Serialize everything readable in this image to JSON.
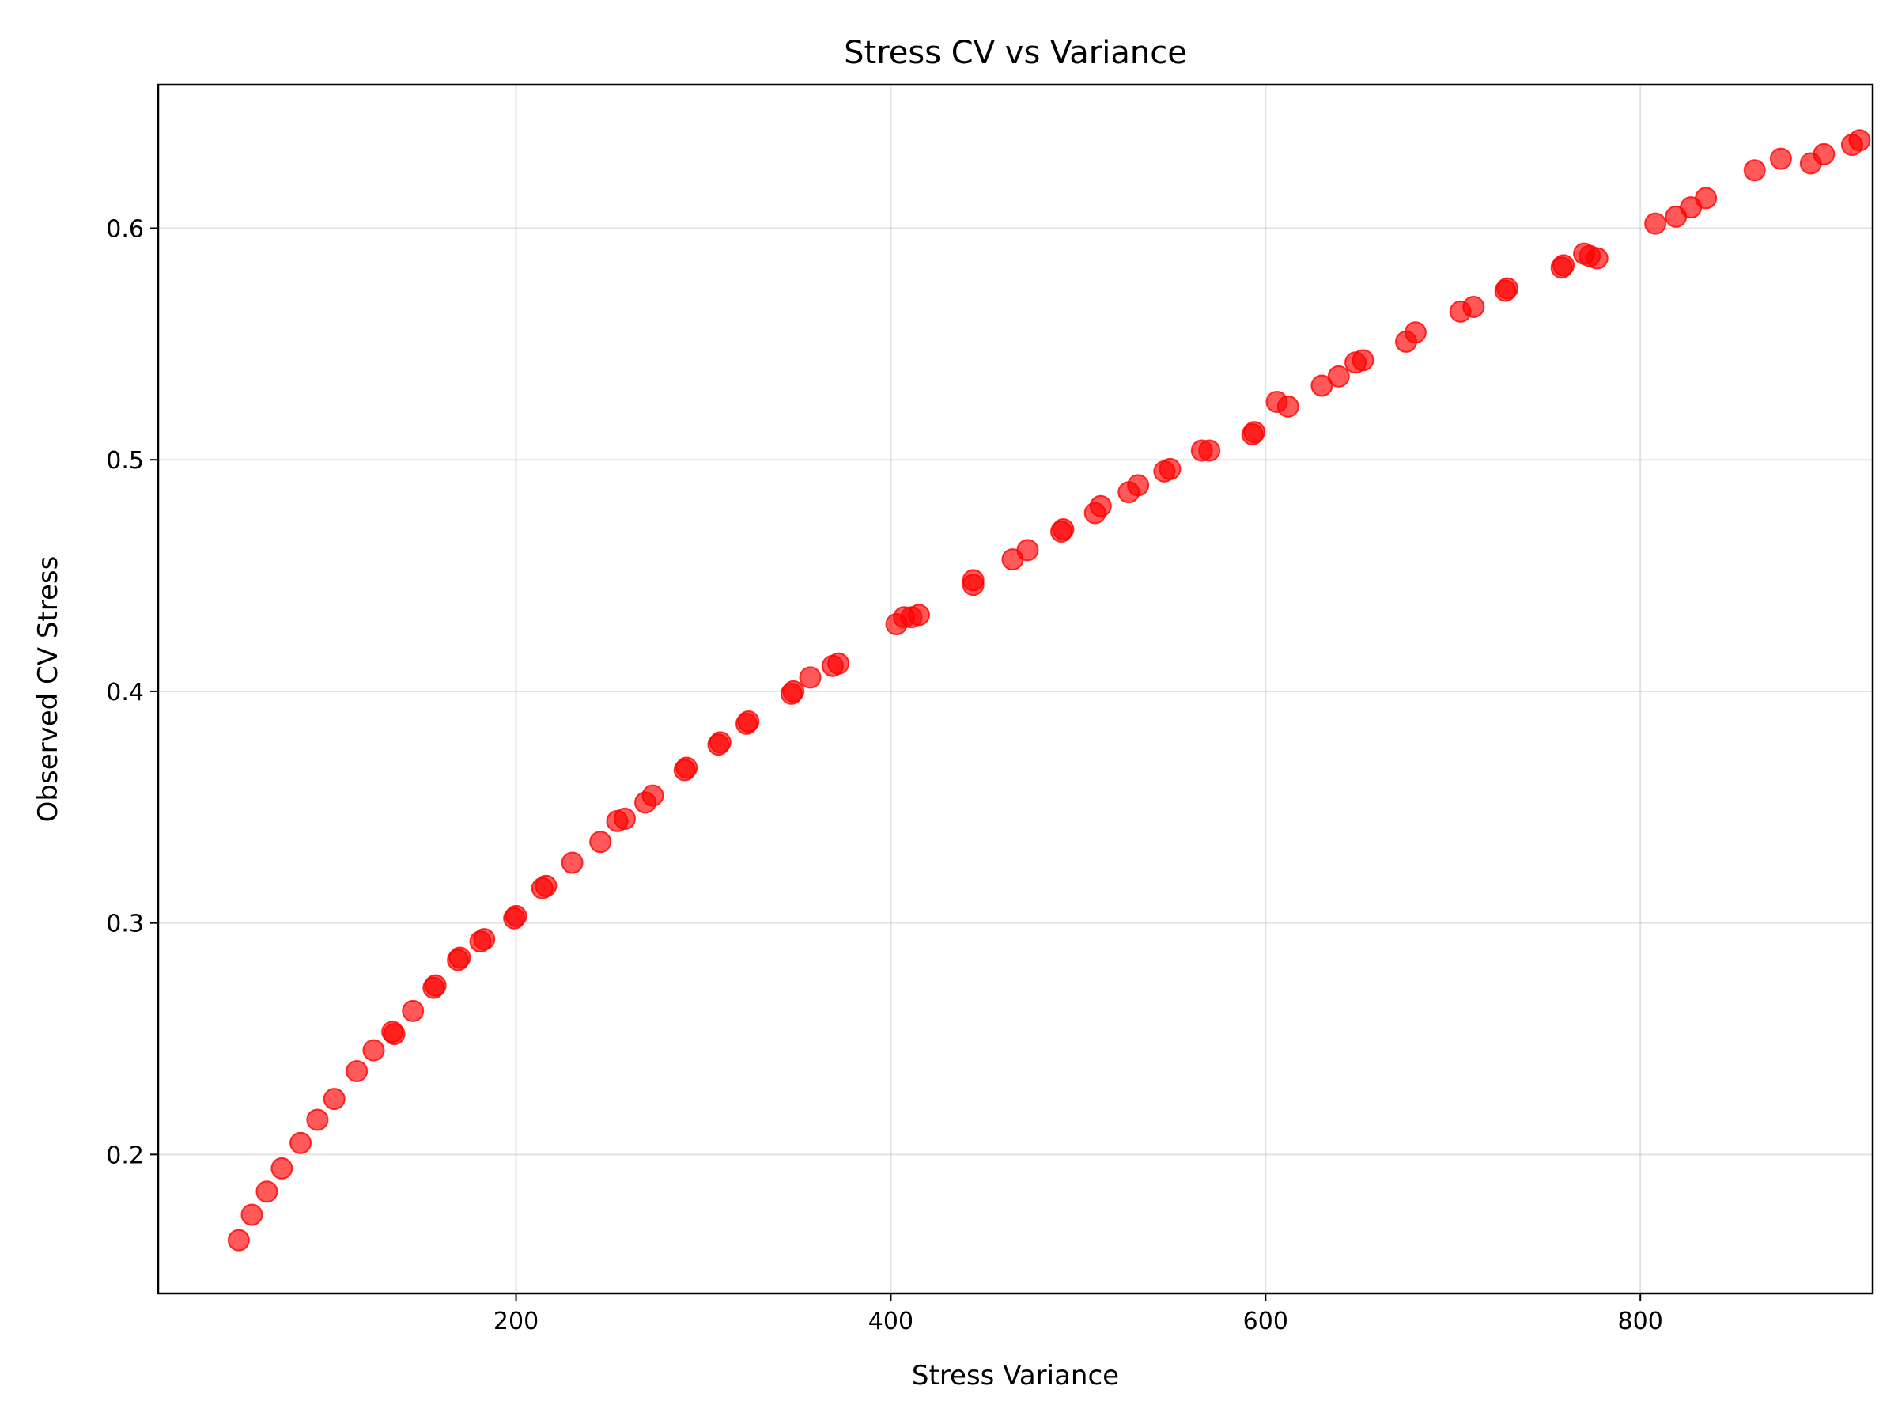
{
  "chart_data": {
    "type": "scatter",
    "title": "Stress CV vs Variance",
    "xlabel": "Stress Variance",
    "ylabel": "Observed CV Stress",
    "xlim": [
      9,
      924
    ],
    "ylim": [
      0.14,
      0.662
    ],
    "xticks": [
      200,
      400,
      600,
      800
    ],
    "yticks": [
      0.2,
      0.3,
      0.4,
      0.5,
      0.6
    ],
    "xtick_labels": [
      "200",
      "400",
      "600",
      "800"
    ],
    "ytick_labels": [
      "0.2",
      "0.3",
      "0.4",
      "0.5",
      "0.6"
    ],
    "grid": true,
    "marker_color": "#ff0000",
    "marker_alpha": 0.65,
    "series": [
      {
        "points": [
          [
            52,
            0.163
          ],
          [
            59,
            0.174
          ],
          [
            67,
            0.184
          ],
          [
            75,
            0.194
          ],
          [
            85,
            0.205
          ],
          [
            94,
            0.215
          ],
          [
            103,
            0.224
          ],
          [
            115,
            0.236
          ],
          [
            124,
            0.245
          ],
          [
            134,
            0.253
          ],
          [
            135,
            0.252
          ],
          [
            145,
            0.262
          ],
          [
            156,
            0.272
          ],
          [
            157,
            0.273
          ],
          [
            169,
            0.284
          ],
          [
            170,
            0.285
          ],
          [
            181,
            0.292
          ],
          [
            183,
            0.293
          ],
          [
            199,
            0.302
          ],
          [
            200,
            0.303
          ],
          [
            214,
            0.315
          ],
          [
            216,
            0.316
          ],
          [
            230,
            0.326
          ],
          [
            245,
            0.335
          ],
          [
            254,
            0.344
          ],
          [
            258,
            0.345
          ],
          [
            269,
            0.352
          ],
          [
            273,
            0.355
          ],
          [
            290,
            0.366
          ],
          [
            291,
            0.367
          ],
          [
            308,
            0.377
          ],
          [
            309,
            0.378
          ],
          [
            323,
            0.386
          ],
          [
            324,
            0.387
          ],
          [
            347,
            0.399
          ],
          [
            348,
            0.4
          ],
          [
            357,
            0.406
          ],
          [
            369,
            0.411
          ],
          [
            372,
            0.412
          ],
          [
            403,
            0.429
          ],
          [
            407,
            0.432
          ],
          [
            411,
            0.432
          ],
          [
            415,
            0.433
          ],
          [
            444,
            0.446
          ],
          [
            444,
            0.448
          ],
          [
            465,
            0.457
          ],
          [
            473,
            0.461
          ],
          [
            491,
            0.469
          ],
          [
            492,
            0.47
          ],
          [
            509,
            0.477
          ],
          [
            512,
            0.48
          ],
          [
            527,
            0.486
          ],
          [
            532,
            0.489
          ],
          [
            546,
            0.495
          ],
          [
            549,
            0.496
          ],
          [
            566,
            0.504
          ],
          [
            570,
            0.504
          ],
          [
            593,
            0.511
          ],
          [
            594,
            0.512
          ],
          [
            606,
            0.525
          ],
          [
            612,
            0.523
          ],
          [
            630,
            0.532
          ],
          [
            639,
            0.536
          ],
          [
            648,
            0.542
          ],
          [
            652,
            0.543
          ],
          [
            675,
            0.551
          ],
          [
            680,
            0.555
          ],
          [
            704,
            0.564
          ],
          [
            711,
            0.566
          ],
          [
            728,
            0.573
          ],
          [
            729,
            0.574
          ],
          [
            758,
            0.583
          ],
          [
            759,
            0.584
          ],
          [
            770,
            0.589
          ],
          [
            773,
            0.588
          ],
          [
            777,
            0.587
          ],
          [
            808,
            0.602
          ],
          [
            819,
            0.605
          ],
          [
            827,
            0.609
          ],
          [
            835,
            0.613
          ],
          [
            861,
            0.625
          ],
          [
            875,
            0.63
          ],
          [
            891,
            0.628
          ],
          [
            898,
            0.632
          ],
          [
            913,
            0.636
          ],
          [
            917,
            0.638
          ]
        ]
      }
    ]
  }
}
